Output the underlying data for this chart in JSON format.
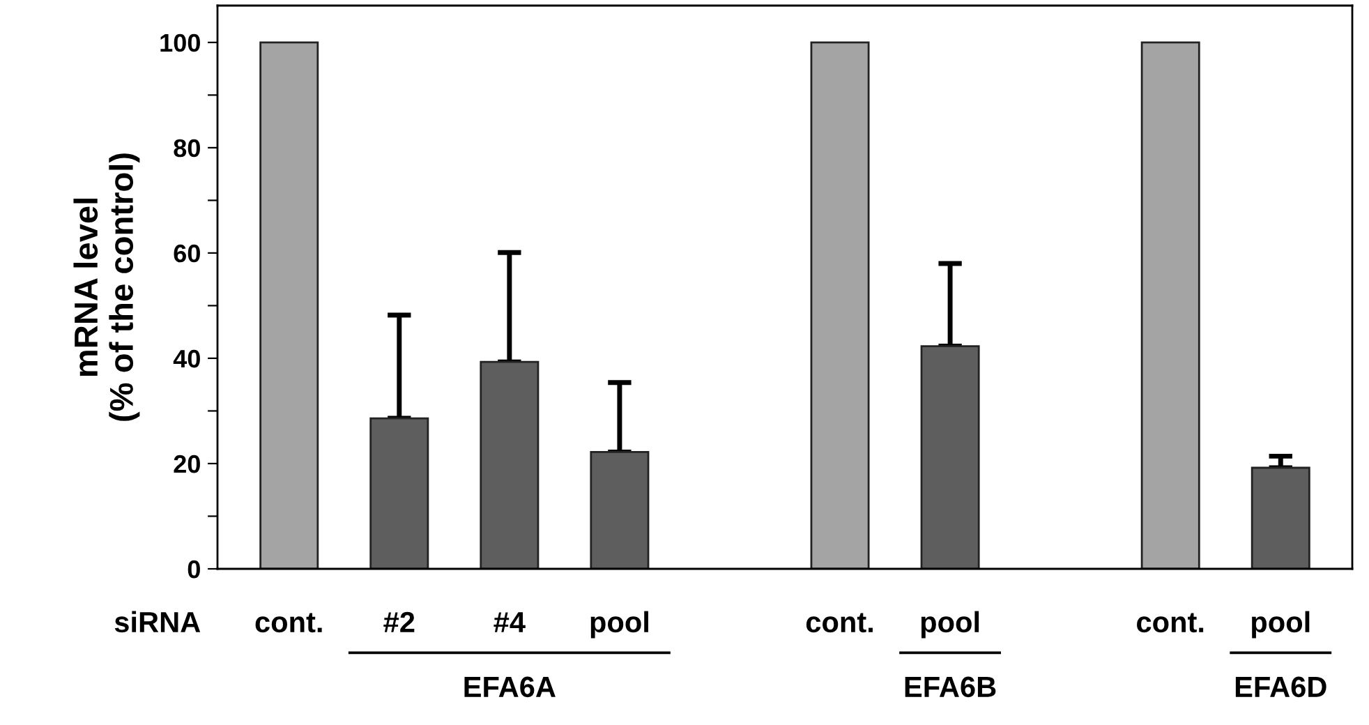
{
  "chart_data": {
    "type": "bar",
    "ylabel": "mRNA level\n(% of the control)",
    "categories": [
      "cont.",
      "#2",
      "#4",
      "pool",
      null,
      "cont.",
      "pool",
      null,
      "cont.",
      "pool"
    ],
    "values": [
      100,
      28.6,
      39.3,
      22.2,
      null,
      100,
      42.3,
      null,
      100,
      19.2
    ],
    "errors": [
      null,
      [
        28.6,
        48.2
      ],
      [
        39.3,
        60.1
      ],
      [
        22.2,
        35.4
      ],
      null,
      null,
      [
        42.3,
        58.0
      ],
      null,
      null,
      [
        19.2,
        21.4
      ]
    ],
    "colors": [
      "#a4a4a4",
      "#5e5e5e",
      "#5e5e5e",
      "#5e5e5e",
      "#ffffff",
      "#a4a4a4",
      "#5e5e5e",
      "#ffffff",
      "#a4a4a4",
      "#5e5e5e"
    ],
    "ylim": [
      0,
      107
    ],
    "yticks": [
      0,
      {
        "value": 10,
        "label": null
      },
      20,
      {
        "value": 30,
        "label": null
      },
      40,
      {
        "value": 50,
        "label": null
      },
      60,
      {
        "value": 70,
        "label": null
      },
      80,
      {
        "value": 90,
        "label": null
      },
      100
    ],
    "annotations": [
      "siRNA",
      "EFA6A",
      "EFA6B",
      "EFA6D"
    ],
    "grid": false
  }
}
